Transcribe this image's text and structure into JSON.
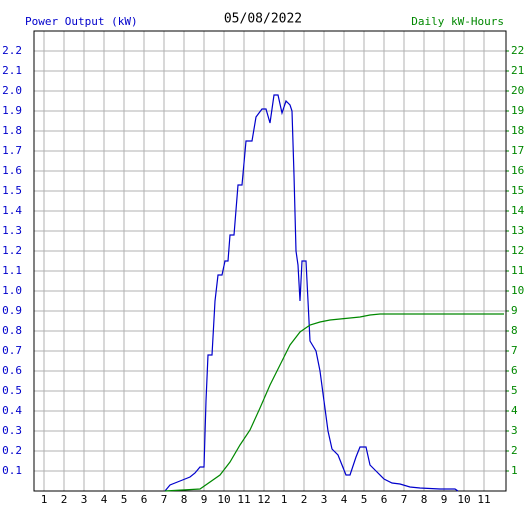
{
  "chart_data": {
    "type": "line",
    "title": "05/08/2022",
    "y_label": "Power Output (kW)",
    "y2_label": "Daily kW-Hours",
    "grid": true,
    "xlim": [
      0.5,
      24.1
    ],
    "ylim": [
      0,
      2.3
    ],
    "y2lim": [
      0,
      23
    ],
    "xticks": [
      1,
      2,
      3,
      4,
      5,
      6,
      7,
      8,
      9,
      10,
      11,
      12,
      {
        "value": 13,
        "label": "1"
      },
      {
        "value": 14,
        "label": "2"
      },
      {
        "value": 15,
        "label": "3"
      },
      {
        "value": 16,
        "label": "4"
      },
      {
        "value": 17,
        "label": "5"
      },
      {
        "value": 18,
        "label": "6"
      },
      {
        "value": 19,
        "label": "7"
      },
      {
        "value": 20,
        "label": "8"
      },
      {
        "value": 21,
        "label": "9"
      },
      {
        "value": 22,
        "label": "10"
      },
      {
        "value": 23,
        "label": "11"
      }
    ],
    "yticks": [
      0.1,
      0.2,
      0.3,
      0.4,
      0.5,
      0.6,
      0.7,
      0.8,
      0.9,
      {
        "value": 1.0,
        "label": "1.0"
      },
      1.1,
      1.2,
      1.3,
      1.4,
      1.5,
      1.6,
      1.7,
      1.8,
      1.9,
      {
        "value": 2.0,
        "label": "2.0"
      },
      2.1,
      2.2
    ],
    "y2ticks": [
      1,
      2,
      3,
      4,
      5,
      6,
      7,
      8,
      9,
      10,
      11,
      12,
      13,
      14,
      15,
      16,
      17,
      18,
      19,
      20,
      21,
      22
    ],
    "series": [
      {
        "name": "Power Output (kW)",
        "color": "#0000cc",
        "axis": "y",
        "x": [
          7.05,
          7.3,
          7.8,
          8.3,
          8.55,
          8.8,
          9.0,
          9.1,
          9.2,
          9.4,
          9.55,
          9.7,
          9.9,
          10.05,
          10.2,
          10.3,
          10.5,
          10.7,
          10.9,
          11.1,
          11.4,
          11.6,
          11.9,
          12.1,
          12.3,
          12.5,
          12.7,
          12.9,
          13.1,
          13.3,
          13.4,
          13.5,
          13.6,
          13.7,
          13.8,
          13.9,
          14.1,
          14.2,
          14.3,
          14.6,
          14.8,
          15.0,
          15.2,
          15.4,
          15.7,
          15.9,
          16.1,
          16.3,
          16.6,
          16.8,
          17.1,
          17.3,
          17.6,
          18.0,
          18.4,
          18.8,
          19.3,
          19.8,
          20.8,
          21.55,
          21.7
        ],
        "values": [
          0,
          0.03,
          0.05,
          0.07,
          0.09,
          0.12,
          0.12,
          0.45,
          0.68,
          0.68,
          0.95,
          1.08,
          1.08,
          1.15,
          1.15,
          1.28,
          1.28,
          1.53,
          1.53,
          1.75,
          1.75,
          1.87,
          1.91,
          1.91,
          1.84,
          1.98,
          1.98,
          1.89,
          1.95,
          1.93,
          1.9,
          1.58,
          1.2,
          1.13,
          0.95,
          1.15,
          1.15,
          0.95,
          0.75,
          0.7,
          0.6,
          0.45,
          0.3,
          0.21,
          0.18,
          0.13,
          0.08,
          0.08,
          0.17,
          0.22,
          0.22,
          0.13,
          0.1,
          0.06,
          0.04,
          0.035,
          0.02,
          0.015,
          0.01,
          0.01,
          0
        ]
      },
      {
        "name": "Daily kW-Hours",
        "color": "#008800",
        "axis": "y2",
        "x": [
          7.05,
          8.8,
          9.8,
          10.3,
          10.8,
          11.3,
          11.8,
          12.3,
          12.8,
          13.3,
          13.8,
          14.3,
          14.8,
          15.3,
          15.8,
          16.8,
          17.3,
          17.8,
          24.0
        ],
        "values": [
          0,
          0.1,
          0.8,
          1.45,
          2.3,
          3.05,
          4.15,
          5.3,
          6.3,
          7.3,
          7.95,
          8.3,
          8.45,
          8.55,
          8.6,
          8.7,
          8.8,
          8.85,
          8.85
        ]
      }
    ]
  }
}
